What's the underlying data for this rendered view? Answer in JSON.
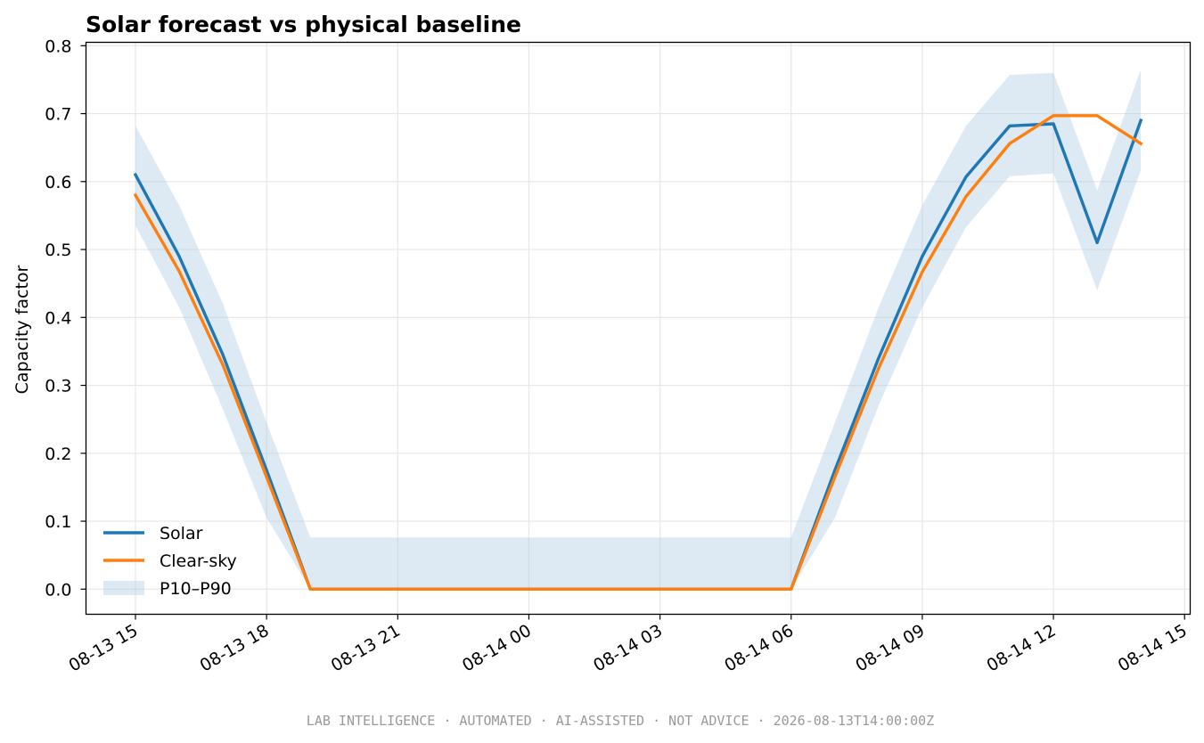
{
  "chart_data": {
    "type": "line",
    "title": "Solar forecast vs physical baseline",
    "xlabel": "",
    "ylabel": "Capacity factor",
    "x": [
      "2026-08-13 15:00",
      "2026-08-13 16:00",
      "2026-08-13 17:00",
      "2026-08-13 18:00",
      "2026-08-13 19:00",
      "2026-08-13 20:00",
      "2026-08-13 21:00",
      "2026-08-13 22:00",
      "2026-08-13 23:00",
      "2026-08-14 00:00",
      "2026-08-14 01:00",
      "2026-08-14 02:00",
      "2026-08-14 03:00",
      "2026-08-14 04:00",
      "2026-08-14 05:00",
      "2026-08-14 06:00",
      "2026-08-14 07:00",
      "2026-08-14 08:00",
      "2026-08-14 09:00",
      "2026-08-14 10:00",
      "2026-08-14 11:00",
      "2026-08-14 12:00",
      "2026-08-14 13:00",
      "2026-08-14 14:00"
    ],
    "series": [
      {
        "name": "Solar",
        "color": "#1f77b4",
        "values": [
          0.61,
          0.49,
          0.345,
          0.175,
          0,
          0,
          0,
          0,
          0,
          0,
          0,
          0,
          0,
          0,
          0,
          0,
          0.175,
          0.34,
          0.49,
          0.607,
          0.682,
          0.685,
          0.51,
          0.69
        ]
      },
      {
        "name": "Clear-sky",
        "color": "#ff7f0e",
        "values": [
          0.58,
          0.468,
          0.33,
          0.165,
          0,
          0,
          0,
          0,
          0,
          0,
          0,
          0,
          0,
          0,
          0,
          0,
          0.165,
          0.325,
          0.467,
          0.578,
          0.656,
          0.697,
          0.697,
          0.656
        ]
      }
    ],
    "band": {
      "name": "P10–P90",
      "color": "#a9c8e2",
      "low": [
        0.535,
        0.415,
        0.265,
        0.105,
        0,
        0,
        0,
        0,
        0,
        0,
        0,
        0,
        0,
        0,
        0,
        0,
        0.105,
        0.27,
        0.415,
        0.533,
        0.608,
        0.612,
        0.44,
        0.617
      ],
      "high": [
        0.682,
        0.565,
        0.42,
        0.245,
        0.076,
        0.076,
        0.076,
        0.076,
        0.076,
        0.076,
        0.076,
        0.076,
        0.076,
        0.076,
        0.076,
        0.076,
        0.245,
        0.415,
        0.565,
        0.682,
        0.757,
        0.76,
        0.587,
        0.765
      ]
    },
    "xticks": [
      {
        "label": "08-13 15",
        "x": "2026-08-13 15:00"
      },
      {
        "label": "08-13 18",
        "x": "2026-08-13 18:00"
      },
      {
        "label": "08-13 21",
        "x": "2026-08-13 21:00"
      },
      {
        "label": "08-14 00",
        "x": "2026-08-14 00:00"
      },
      {
        "label": "08-14 03",
        "x": "2026-08-14 03:00"
      },
      {
        "label": "08-14 06",
        "x": "2026-08-14 06:00"
      },
      {
        "label": "08-14 09",
        "x": "2026-08-14 09:00"
      },
      {
        "label": "08-14 12",
        "x": "2026-08-14 12:00"
      },
      {
        "label": "08-14 15",
        "x": "2026-08-14 15:00"
      }
    ],
    "yticks": [
      "0.0",
      "0.1",
      "0.2",
      "0.3",
      "0.4",
      "0.5",
      "0.6",
      "0.7",
      "0.8"
    ],
    "ylim": [
      -0.037,
      0.805
    ],
    "grid": true,
    "legend_position": "lower-left"
  },
  "footer": "LAB INTELLIGENCE · AUTOMATED · AI-ASSISTED · NOT ADVICE · 2026-08-13T14:00:00Z"
}
